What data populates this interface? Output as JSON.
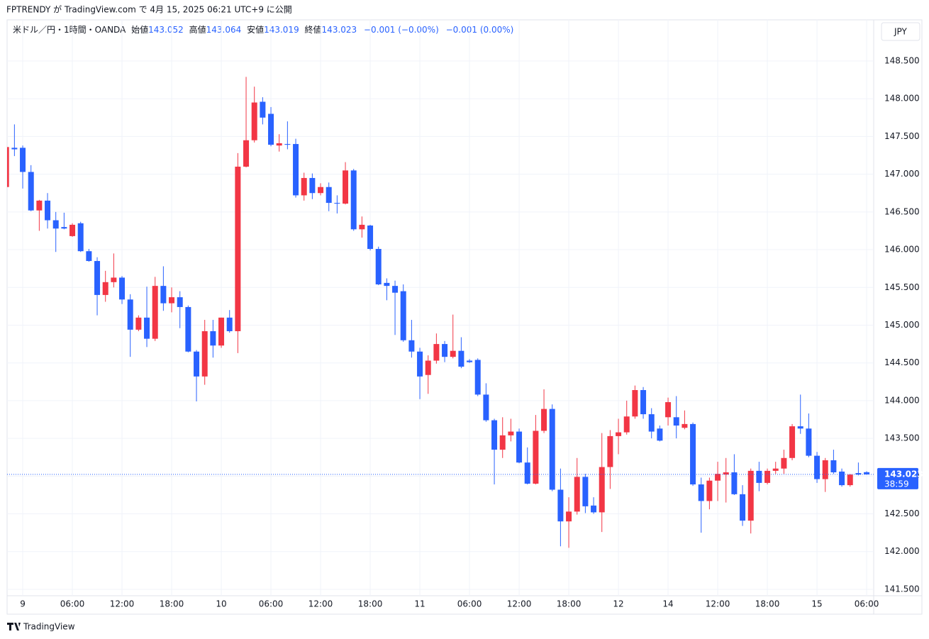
{
  "chart_data": {
    "type": "candlestick",
    "published": "FPTRENDY が TradingView.com で 4月 15, 2025 06:21 UTC+9 に公開",
    "legend": {
      "symbol": "米ドル／円・1時間・OANDA",
      "open_label": "始値",
      "open": 143.052,
      "high_label": "高値",
      "high": 143.064,
      "low_label": "安値",
      "low": 143.019,
      "close_label": "終値",
      "close": 143.023,
      "change": "−0.001 (−0.00%)",
      "change2": "−0.001 (0.00%)"
    },
    "currency": "JPY",
    "last_price": 143.023,
    "countdown": "38:59",
    "brand": "TradingView",
    "up_color": "#f23645",
    "down_color": "#2962ff",
    "categories": [
      null,
      null,
      "9",
      null,
      null,
      null,
      null,
      null,
      "06:00",
      null,
      null,
      null,
      null,
      null,
      "12:00",
      null,
      null,
      null,
      null,
      null,
      "18:00",
      null,
      null,
      null,
      null,
      null,
      "10",
      null,
      null,
      null,
      null,
      null,
      "06:00",
      null,
      null,
      null,
      null,
      null,
      "12:00",
      null,
      null,
      null,
      null,
      null,
      "18:00",
      null,
      null,
      null,
      null,
      null,
      "11",
      null,
      null,
      null,
      null,
      null,
      "06:00",
      null,
      null,
      null,
      null,
      null,
      "12:00",
      null,
      null,
      null,
      null,
      null,
      "18:00",
      null,
      null,
      null,
      null,
      null,
      "12",
      null,
      null,
      null,
      null,
      null,
      "14",
      null,
      null,
      null,
      null,
      null,
      "12:00",
      null,
      null,
      null,
      null,
      null,
      "18:00",
      null,
      null,
      null,
      null,
      null,
      "15",
      null,
      null,
      null,
      null,
      null,
      "06:00"
    ],
    "open": [
      146.83,
      147.35,
      147.35,
      147.03,
      146.52,
      146.65,
      146.39,
      146.3,
      146.18,
      146.35,
      145.98,
      145.85,
      145.4,
      145.57,
      145.63,
      145.34,
      144.94,
      145.1,
      144.82,
      145.52,
      145.29,
      145.37,
      145.24,
      144.65,
      144.32,
      144.92,
      144.73,
      145.1,
      144.92,
      147.1,
      147.45,
      147.96,
      147.8,
      147.38,
      147.4,
      147.4,
      146.72,
      146.95,
      146.75,
      146.83,
      146.62,
      146.61,
      147.05,
      146.27,
      146.32,
      146.01,
      145.56,
      145.52,
      145.45,
      144.8,
      144.65,
      144.34,
      144.53,
      144.75,
      144.58,
      144.66,
      144.53,
      144.54,
      144.08,
      143.74,
      143.35,
      143.54,
      143.59,
      143.18,
      142.9,
      143.6,
      143.89,
      142.82,
      142.4,
      142.53,
      142.99,
      142.61,
      142.52,
      143.12,
      143.53,
      143.58,
      143.79,
      144.14,
      143.82,
      143.63,
      143.78,
      143.78,
      143.64,
      143.69,
      142.89,
      142.67,
      142.94,
      143.02,
      143.05,
      142.76,
      142.41,
      143.07,
      142.91,
      143.07,
      143.1,
      143.24,
      143.66,
      143.63,
      143.27,
      142.96,
      143.21,
      143.06,
      142.88,
      143.04,
      143.052
    ],
    "high": [
      147.36,
      147.66,
      147.38,
      147.12,
      146.66,
      146.75,
      146.5,
      146.49,
      146.35,
      146.37,
      146.01,
      145.9,
      145.72,
      145.95,
      145.65,
      145.41,
      145.13,
      145.51,
      145.64,
      145.78,
      145.5,
      145.45,
      145.26,
      144.67,
      145.07,
      145.07,
      145.1,
      145.2,
      147.28,
      148.29,
      148.16,
      148.02,
      147.89,
      147.53,
      147.7,
      147.47,
      147.02,
      147.01,
      146.88,
      146.89,
      146.72,
      147.16,
      147.07,
      146.44,
      146.33,
      146.04,
      145.62,
      145.59,
      145.54,
      145.07,
      144.7,
      144.6,
      144.89,
      144.79,
      145.14,
      144.84,
      144.55,
      144.56,
      144.23,
      143.76,
      143.78,
      143.76,
      143.63,
      143.38,
      143.81,
      144.15,
      143.95,
      143.1,
      142.72,
      143.24,
      143.03,
      142.72,
      143.57,
      143.61,
      143.76,
      144.0,
      144.2,
      144.18,
      143.9,
      143.67,
      144.04,
      144.06,
      143.87,
      143.71,
      142.98,
      142.98,
      143.19,
      143.24,
      143.29,
      142.88,
      143.1,
      143.19,
      143.1,
      143.19,
      143.35,
      143.69,
      144.08,
      143.83,
      143.32,
      143.24,
      143.35,
      143.1,
      143.03,
      143.18,
      143.064
    ],
    "low": [
      146.83,
      147.24,
      146.81,
      146.51,
      146.25,
      146.28,
      145.97,
      146.27,
      146.17,
      145.97,
      145.84,
      145.13,
      145.31,
      145.5,
      145.28,
      144.58,
      144.92,
      144.71,
      144.79,
      145.19,
      145.17,
      144.96,
      144.64,
      143.99,
      144.21,
      144.57,
      144.7,
      144.9,
      144.63,
      147.09,
      147.42,
      147.66,
      147.37,
      147.3,
      147.33,
      146.69,
      146.65,
      146.67,
      146.72,
      146.51,
      146.48,
      146.6,
      146.25,
      146.16,
      145.99,
      145.53,
      145.33,
      144.87,
      144.78,
      144.57,
      144.02,
      144.09,
      144.49,
      144.51,
      144.56,
      144.43,
      144.5,
      144.06,
      143.72,
      142.89,
      143.24,
      143.46,
      143.17,
      142.89,
      142.89,
      143.57,
      142.8,
      142.07,
      142.05,
      142.49,
      142.51,
      142.5,
      142.26,
      142.83,
      143.29,
      143.55,
      143.76,
      143.76,
      143.5,
      143.46,
      143.67,
      143.5,
      143.62,
      142.87,
      142.25,
      142.56,
      142.67,
      142.65,
      142.75,
      142.34,
      142.24,
      142.8,
      142.89,
      143.03,
      143.03,
      143.21,
      143.56,
      143.25,
      142.91,
      142.79,
      143.03,
      142.86,
      142.86,
      143.01,
      143.019
    ],
    "close": [
      147.36,
      147.33,
      147.03,
      146.52,
      146.65,
      146.39,
      146.28,
      146.28,
      146.33,
      145.98,
      145.85,
      145.4,
      145.57,
      145.63,
      145.34,
      144.94,
      145.1,
      144.82,
      145.52,
      145.29,
      145.37,
      145.24,
      144.65,
      144.32,
      144.92,
      144.73,
      145.1,
      144.92,
      147.1,
      147.45,
      147.95,
      147.75,
      147.39,
      147.41,
      147.39,
      146.72,
      146.95,
      146.75,
      146.83,
      146.62,
      146.61,
      147.05,
      146.27,
      146.33,
      146.01,
      145.54,
      145.52,
      145.43,
      144.8,
      144.65,
      144.32,
      144.53,
      144.75,
      144.58,
      144.66,
      144.45,
      144.51,
      144.08,
      143.74,
      143.35,
      143.54,
      143.59,
      143.18,
      142.9,
      143.6,
      143.89,
      142.82,
      142.4,
      142.53,
      142.99,
      142.6,
      142.52,
      143.12,
      143.53,
      143.58,
      143.79,
      144.14,
      143.82,
      143.59,
      143.47,
      143.98,
      143.67,
      143.69,
      142.89,
      142.67,
      142.94,
      143.03,
      143.05,
      142.76,
      142.41,
      143.07,
      142.91,
      143.07,
      143.1,
      143.24,
      143.66,
      143.63,
      143.27,
      142.96,
      143.21,
      143.05,
      142.88,
      143.02,
      143.02,
      143.023
    ],
    "ylim": [
      141.415,
      149.045
    ],
    "yticks": [
      {
        "value": 141.5,
        "label": "141.500"
      },
      {
        "value": 142,
        "label": "142.000"
      },
      {
        "value": 142.5,
        "label": "142.500"
      },
      {
        "value": 143,
        "label": "143.000"
      },
      {
        "value": 143.5,
        "label": "143.500"
      },
      {
        "value": 144,
        "label": "144.000"
      },
      {
        "value": 144.5,
        "label": "144.500"
      },
      {
        "value": 145,
        "label": "145.000"
      },
      {
        "value": 145.5,
        "label": "145.500"
      },
      {
        "value": 146,
        "label": "146.000"
      },
      {
        "value": 146.5,
        "label": "146.500"
      },
      {
        "value": 147,
        "label": "147.000"
      },
      {
        "value": 147.5,
        "label": "147.500"
      },
      {
        "value": 148,
        "label": "148.000"
      },
      {
        "value": 148.5,
        "label": "148.500"
      }
    ],
    "grid": true
  }
}
